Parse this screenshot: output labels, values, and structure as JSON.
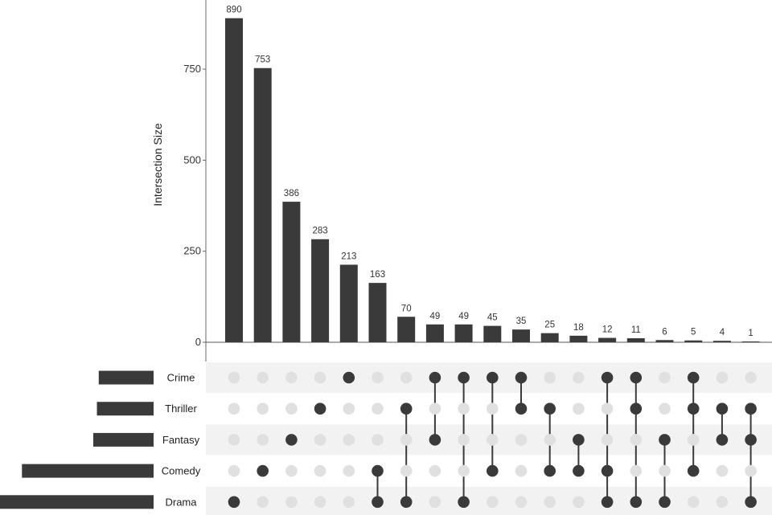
{
  "chart_data": {
    "type": "bar",
    "subtype": "upset",
    "ylabel": "Intersection Size",
    "ylim": [
      0,
      940
    ],
    "yticks": [
      0,
      250,
      500,
      750
    ],
    "sets": [
      "Crime",
      "Thriller",
      "Fantasy",
      "Comedy",
      "Drama"
    ],
    "set_sizes": [
      150,
      155,
      165,
      360,
      420
    ],
    "intersections": [
      {
        "value": 890,
        "label": "890",
        "members": [
          "Drama"
        ]
      },
      {
        "value": 753,
        "label": "753",
        "members": [
          "Comedy"
        ]
      },
      {
        "value": 386,
        "label": "386",
        "members": [
          "Fantasy"
        ]
      },
      {
        "value": 283,
        "label": "283",
        "members": [
          "Thriller"
        ]
      },
      {
        "value": 213,
        "label": "213",
        "members": [
          "Crime"
        ]
      },
      {
        "value": 163,
        "label": "163",
        "members": [
          "Comedy",
          "Drama"
        ]
      },
      {
        "value": 70,
        "label": "70",
        "members": [
          "Thriller",
          "Drama"
        ]
      },
      {
        "value": 49,
        "label": "49",
        "members": [
          "Crime",
          "Fantasy"
        ]
      },
      {
        "value": 49,
        "label": "49",
        "members": [
          "Crime",
          "Drama"
        ]
      },
      {
        "value": 45,
        "label": "45",
        "members": [
          "Crime",
          "Comedy"
        ]
      },
      {
        "value": 35,
        "label": "35",
        "members": [
          "Crime",
          "Thriller"
        ]
      },
      {
        "value": 25,
        "label": "25",
        "members": [
          "Thriller",
          "Comedy"
        ]
      },
      {
        "value": 18,
        "label": "18",
        "members": [
          "Fantasy",
          "Comedy"
        ]
      },
      {
        "value": 12,
        "label": "12",
        "members": [
          "Crime",
          "Comedy",
          "Drama"
        ]
      },
      {
        "value": 11,
        "label": "11",
        "members": [
          "Crime",
          "Thriller",
          "Drama"
        ]
      },
      {
        "value": 6,
        "label": "6",
        "members": [
          "Fantasy",
          "Drama"
        ]
      },
      {
        "value": 5,
        "label": "5",
        "members": [
          "Crime",
          "Thriller",
          "Comedy"
        ]
      },
      {
        "value": 4,
        "label": "4",
        "members": [
          "Thriller",
          "Fantasy"
        ]
      },
      {
        "value": 1,
        "label": "1",
        "members": [
          "Thriller",
          "Fantasy",
          "Drama"
        ]
      }
    ],
    "colors": {
      "bar": "#3a3a3a",
      "dot_active": "#3a3a3a",
      "dot_inactive": "#e0e0e0",
      "stripe": "#f2f2f2",
      "axis": "#666666"
    }
  }
}
